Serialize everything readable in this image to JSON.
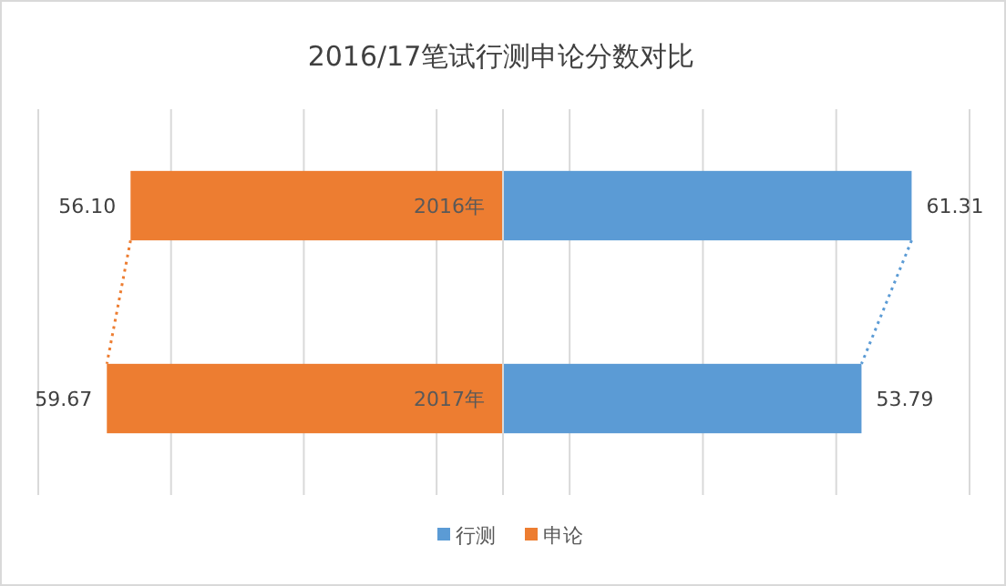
{
  "chart_data": [
    {
      "type": "bar",
      "orientation": "horizontal",
      "title": "2016/17笔试行测申论分数对比",
      "categories": [
        "2016年",
        "2017年"
      ],
      "series": [
        {
          "name": "申论",
          "color": "#ed7d31",
          "values": [
            56.1,
            59.67
          ],
          "value_labels": [
            "56.10",
            "59.67"
          ]
        }
      ],
      "xlim": [
        70,
        0
      ],
      "xticks": [
        {
          "value": 70,
          "label": null
        },
        {
          "value": 50,
          "label": null
        },
        {
          "value": 30,
          "label": null
        },
        {
          "value": 10,
          "label": null
        }
      ],
      "grid": "x",
      "legend": "bottom"
    },
    {
      "type": "bar",
      "orientation": "horizontal",
      "categories": [
        null,
        null
      ],
      "series": [
        {
          "name": "行测",
          "color": "#5b9bd5",
          "values": [
            61.31,
            53.79
          ],
          "value_labels": [
            "61.31",
            "53.79"
          ]
        }
      ],
      "xlim": [
        0,
        70
      ],
      "xticks": [
        {
          "value": 10,
          "label": null
        },
        {
          "value": 30,
          "label": null
        },
        {
          "value": 50,
          "label": null
        },
        {
          "value": 70,
          "label": null
        }
      ],
      "grid": "x",
      "legend": "bottom"
    }
  ]
}
